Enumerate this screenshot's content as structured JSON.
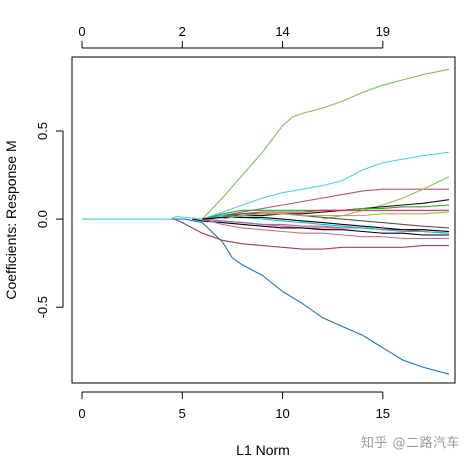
{
  "chart_data": {
    "type": "line",
    "xlabel": "L1 Norm",
    "ylabel": "Coefficients: Response M",
    "xlim": [
      -0.5,
      18.6
    ],
    "ylim": [
      -0.93,
      0.92
    ],
    "x_ticks": [
      "0",
      "5",
      "10",
      "15"
    ],
    "x_tick_values": [
      0,
      5,
      10,
      15
    ],
    "y_ticks": [
      "-0.5",
      "0.0",
      "0.5"
    ],
    "y_tick_values": [
      -0.5,
      0.0,
      0.5
    ],
    "top_ticks": [
      "0",
      "2",
      "14",
      "19"
    ],
    "top_tick_positions": [
      0,
      5,
      10,
      15
    ],
    "grid": false,
    "series": [
      {
        "color": "#1f77b4",
        "x": [
          0,
          4.5,
          5.1,
          6,
          7,
          7.5,
          8,
          9,
          10,
          11,
          12,
          13,
          14,
          15,
          16,
          17,
          18.3
        ],
        "y": [
          0,
          0,
          0,
          -0.02,
          -0.13,
          -0.22,
          -0.26,
          -0.32,
          -0.41,
          -0.48,
          -0.56,
          -0.61,
          -0.66,
          -0.73,
          -0.8,
          -0.84,
          -0.88
        ]
      },
      {
        "color": "#7fbf5a",
        "x": [
          6,
          7,
          8,
          9,
          10,
          10.5,
          11,
          12,
          13,
          14,
          15,
          16,
          17,
          18.3
        ],
        "y": [
          0,
          0.12,
          0.25,
          0.38,
          0.53,
          0.58,
          0.6,
          0.63,
          0.67,
          0.72,
          0.76,
          0.79,
          0.82,
          0.85
        ]
      },
      {
        "color": "#4fd6d6",
        "x": [
          6,
          7,
          8,
          9,
          10,
          11,
          12,
          13,
          14,
          15,
          16,
          17,
          18.3
        ],
        "y": [
          0,
          0.04,
          0.08,
          0.12,
          0.15,
          0.17,
          0.19,
          0.22,
          0.28,
          0.32,
          0.34,
          0.36,
          0.38
        ]
      },
      {
        "color": "#b5527a",
        "x": [
          6,
          7,
          8,
          9,
          10,
          11,
          12,
          13,
          14,
          15,
          16,
          17,
          18.3
        ],
        "y": [
          0,
          0.02,
          0.04,
          0.06,
          0.08,
          0.1,
          0.12,
          0.14,
          0.16,
          0.17,
          0.17,
          0.17,
          0.17
        ]
      },
      {
        "color": "#8fbf4f",
        "x": [
          12,
          13,
          14,
          15,
          16,
          17,
          18.3
        ],
        "y": [
          0,
          0.02,
          0.05,
          0.08,
          0.12,
          0.17,
          0.24
        ]
      },
      {
        "color": "#111111",
        "x": [
          6,
          7,
          8,
          9,
          10,
          11,
          12,
          13,
          14,
          15,
          16,
          17,
          18.3
        ],
        "y": [
          0,
          0.01,
          0.02,
          0.02,
          0.03,
          0.03,
          0.04,
          0.05,
          0.06,
          0.07,
          0.08,
          0.09,
          0.11
        ]
      },
      {
        "color": "#2ca02c",
        "x": [
          6,
          7,
          8,
          9,
          10,
          11,
          12,
          13,
          14,
          15,
          16,
          17,
          18.3
        ],
        "y": [
          0,
          0.03,
          0.05,
          0.05,
          0.05,
          0.05,
          0.05,
          0.05,
          0.06,
          0.06,
          0.07,
          0.07,
          0.08
        ]
      },
      {
        "color": "#c0395a",
        "x": [
          6,
          7,
          8,
          9,
          10,
          11,
          12,
          13,
          14,
          15,
          16,
          17,
          18.3
        ],
        "y": [
          0,
          0.01,
          0.03,
          0.04,
          0.04,
          0.04,
          0.05,
          0.05,
          0.05,
          0.05,
          0.05,
          0.05,
          0.05
        ]
      },
      {
        "color": "#555555",
        "x": [
          6,
          7,
          8,
          9,
          10,
          11,
          12,
          13,
          14,
          15,
          16,
          17,
          18.3
        ],
        "y": [
          0,
          0.02,
          0.03,
          0.03,
          0.03,
          0.02,
          0.01,
          0.0,
          -0.01,
          -0.02,
          -0.03,
          -0.04,
          -0.05
        ]
      },
      {
        "color": "#e15759",
        "x": [
          6,
          7,
          8,
          9,
          10,
          11,
          12,
          13,
          14,
          15,
          16,
          17,
          18.3
        ],
        "y": [
          0,
          -0.01,
          -0.02,
          -0.03,
          -0.04,
          -0.05,
          -0.05,
          -0.05,
          -0.05,
          -0.06,
          -0.06,
          -0.06,
          -0.07
        ]
      },
      {
        "color": "#9467bd",
        "x": [
          6,
          7,
          8,
          9,
          10,
          11,
          12,
          13,
          14,
          15,
          16,
          17,
          18.3
        ],
        "y": [
          0,
          -0.01,
          -0.02,
          -0.03,
          -0.03,
          -0.04,
          -0.04,
          -0.05,
          -0.05,
          -0.06,
          -0.06,
          -0.07,
          -0.08
        ]
      },
      {
        "color": "#000000",
        "x": [
          5.5,
          6,
          7,
          8,
          9,
          10,
          11,
          12,
          13,
          14,
          15,
          16,
          17,
          18.3
        ],
        "y": [
          0,
          -0.01,
          -0.02,
          -0.03,
          -0.04,
          -0.05,
          -0.05,
          -0.06,
          -0.06,
          -0.07,
          -0.08,
          -0.08,
          -0.09,
          -0.09
        ]
      },
      {
        "color": "#17becf",
        "x": [
          6,
          7,
          8,
          9,
          10,
          11,
          12,
          13,
          14,
          15,
          16,
          17,
          18.3
        ],
        "y": [
          0,
          0.02,
          0.01,
          0.0,
          -0.01,
          -0.02,
          -0.03,
          -0.04,
          -0.05,
          -0.06,
          -0.07,
          -0.07,
          -0.08
        ]
      },
      {
        "color": "#a83c5c",
        "x": [
          4.6,
          5,
          5.5,
          6,
          7,
          8,
          9,
          10,
          11,
          12,
          13,
          14,
          15,
          16,
          17,
          18.3
        ],
        "y": [
          0,
          -0.02,
          -0.05,
          -0.08,
          -0.12,
          -0.14,
          -0.15,
          -0.16,
          -0.17,
          -0.17,
          -0.16,
          -0.16,
          -0.16,
          -0.16,
          -0.15,
          -0.15
        ]
      },
      {
        "color": "#bf6f9a",
        "x": [
          6,
          7,
          8,
          9,
          10,
          11,
          12,
          13,
          14,
          15,
          16,
          17,
          18.3
        ],
        "y": [
          0,
          -0.03,
          -0.05,
          -0.06,
          -0.07,
          -0.08,
          -0.08,
          -0.09,
          -0.1,
          -0.1,
          -0.11,
          -0.11,
          -0.11
        ]
      },
      {
        "color": "#000000",
        "x": [
          6,
          7,
          8,
          9,
          10,
          11,
          12,
          13,
          14,
          15,
          16,
          17,
          18.3
        ],
        "y": [
          0,
          0.01,
          0.01,
          0.01,
          0.0,
          -0.01,
          -0.02,
          -0.03,
          -0.04,
          -0.05,
          -0.06,
          -0.06,
          -0.07
        ]
      },
      {
        "color": "#4fd6d6",
        "x": [
          0,
          4.4,
          4.7,
          5.2,
          6
        ],
        "y": [
          0,
          0,
          0.015,
          0.01,
          0
        ]
      },
      {
        "color": "#8bc34a",
        "x": [
          7,
          8,
          9,
          10,
          11,
          12,
          13,
          14,
          15,
          16,
          17,
          18.3
        ],
        "y": [
          0,
          0.02,
          0.03,
          0.03,
          0.02,
          0.02,
          0.02,
          0.02,
          0.03,
          0.03,
          0.03,
          0.04
        ]
      }
    ]
  },
  "watermark": "知乎 @二路汽车"
}
